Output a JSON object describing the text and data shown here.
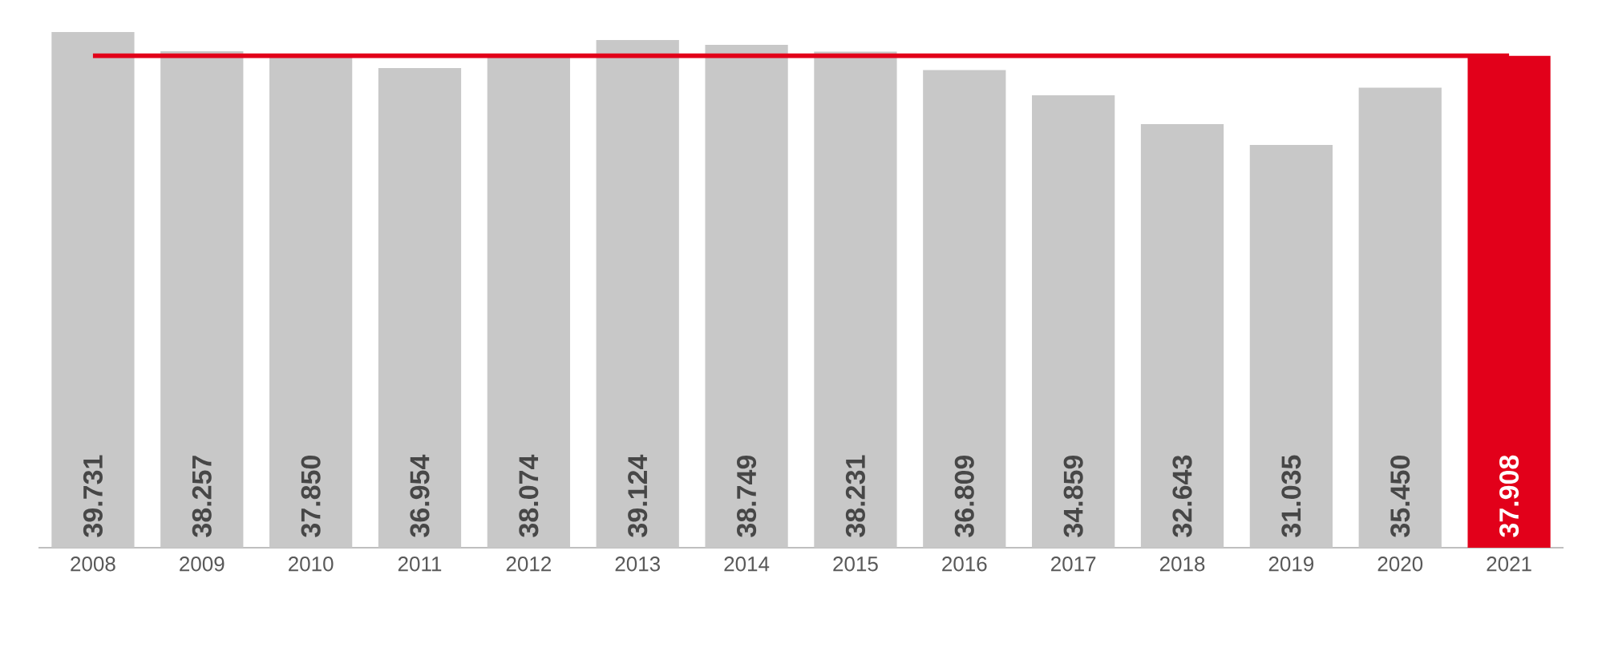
{
  "chart_data": {
    "type": "bar",
    "categories": [
      "2008",
      "2009",
      "2010",
      "2011",
      "2012",
      "2013",
      "2014",
      "2015",
      "2016",
      "2017",
      "2018",
      "2019",
      "2020",
      "2021"
    ],
    "values": [
      39.731,
      38.257,
      37.85,
      36.954,
      38.074,
      39.124,
      38.749,
      38.231,
      36.809,
      34.859,
      32.643,
      31.035,
      35.45,
      37.908
    ],
    "value_labels": [
      "39.731",
      "38.257",
      "37.850",
      "36.954",
      "38.074",
      "39.124",
      "38.749",
      "38.231",
      "36.809",
      "34.859",
      "32.643",
      "31.035",
      "35.450",
      "37.908"
    ],
    "colors": [
      "#c8c8c8",
      "#c8c8c8",
      "#c8c8c8",
      "#c8c8c8",
      "#c8c8c8",
      "#c8c8c8",
      "#c8c8c8",
      "#c8c8c8",
      "#c8c8c8",
      "#c8c8c8",
      "#c8c8c8",
      "#c8c8c8",
      "#c8c8c8",
      "#e2001a"
    ],
    "ref_lines": [
      {
        "axis": "y",
        "value": 37.908,
        "color": "#e2001a"
      }
    ],
    "grid": false
  }
}
